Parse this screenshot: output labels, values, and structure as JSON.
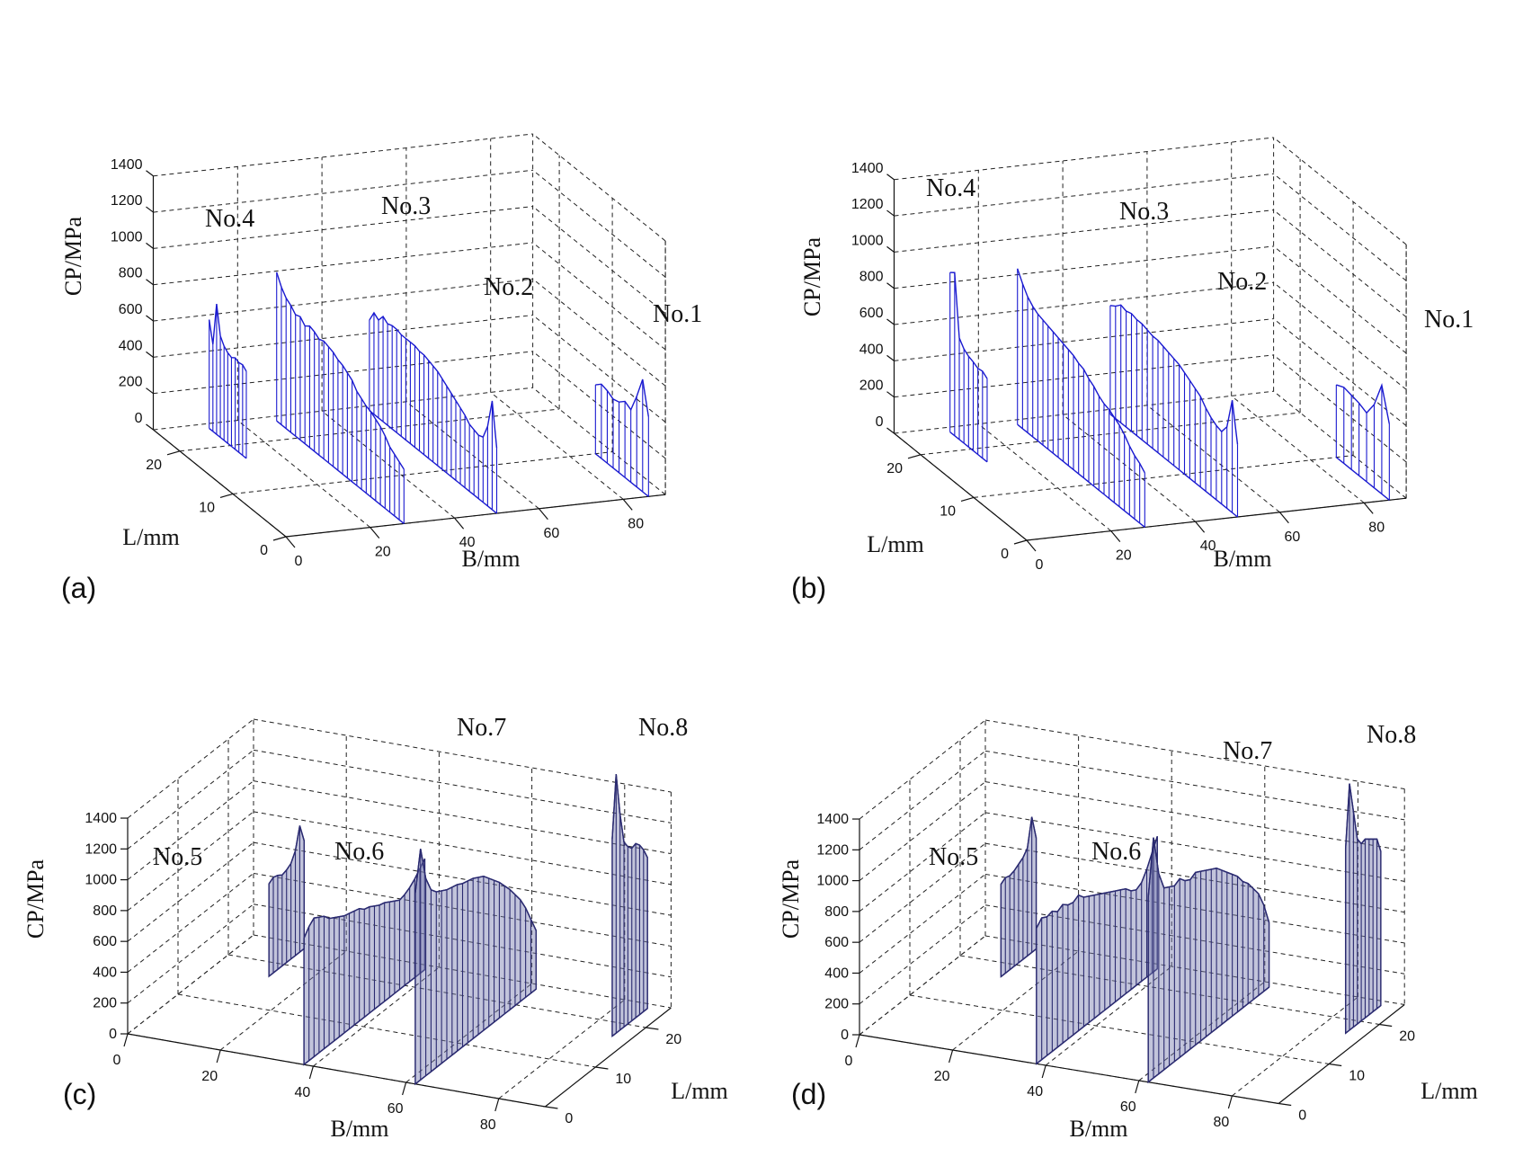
{
  "chart_data": [
    {
      "panel": "(a)",
      "type": "bar3d-stem",
      "xlabel": "B/mm",
      "ylabel": "L/mm",
      "zlabel": "CP/MPa",
      "xlim": [
        0,
        90
      ],
      "ylim": [
        0,
        25
      ],
      "zlim": [
        0,
        1400
      ],
      "xticks": [
        "0",
        "20",
        "40",
        "60",
        "80"
      ],
      "yticks": [
        "0",
        "10",
        "20"
      ],
      "zticks": [
        "0",
        "200",
        "400",
        "600",
        "800",
        "1000",
        "1200",
        "1400"
      ],
      "series": [
        {
          "name": "No.4",
          "B_position": 12,
          "L_range": [
            17,
            24
          ],
          "values": [
            480,
            500,
            495,
            505,
            490,
            500,
            520,
            560,
            720,
            480,
            600
          ]
        },
        {
          "name": "No.3",
          "B_position": 28,
          "L_range": [
            0,
            24
          ],
          "values": [
            300,
            320,
            340,
            360,
            400,
            430,
            450,
            470,
            480,
            500,
            520,
            560,
            580,
            600,
            610,
            630,
            640,
            650,
            640,
            660,
            670,
            650,
            680,
            670,
            700,
            720,
            760,
            820
          ]
        },
        {
          "name": "No.2",
          "B_position": 50,
          "L_range": [
            0,
            24
          ],
          "values": [
            360,
            600,
            440,
            360,
            350,
            360,
            370,
            400,
            420,
            440,
            460,
            480,
            500,
            520,
            530,
            540,
            550,
            550,
            560,
            560,
            560,
            560,
            570,
            570,
            560,
            580,
            540,
            560,
            500
          ]
        },
        {
          "name": "No.1",
          "B_position": 86,
          "L_range": [
            0,
            10
          ],
          "values": [
            440,
            620,
            500,
            400,
            420,
            390,
            380,
            400,
            410,
            380
          ]
        }
      ]
    },
    {
      "panel": "(b)",
      "type": "bar3d-stem",
      "xlabel": "B/mm",
      "ylabel": "L/mm",
      "zlabel": "CP/MPa",
      "xlim": [
        0,
        90
      ],
      "ylim": [
        0,
        25
      ],
      "zlim": [
        0,
        1400
      ],
      "xticks": [
        "0",
        "20",
        "40",
        "60",
        "80"
      ],
      "yticks": [
        "0",
        "10",
        "20"
      ],
      "zticks": [
        "0",
        "200",
        "400",
        "600",
        "800",
        "1000",
        "1200",
        "1400"
      ],
      "series": [
        {
          "name": "No.4",
          "B_position": 12,
          "L_range": [
            17,
            24
          ],
          "values": [
            460,
            480,
            475,
            490,
            500,
            520,
            560,
            900,
            880
          ]
        },
        {
          "name": "No.3",
          "B_position": 28,
          "L_range": [
            0,
            24
          ],
          "values": [
            300,
            330,
            350,
            380,
            420,
            450,
            470,
            490,
            500,
            520,
            550,
            570,
            600,
            610,
            630,
            640,
            650,
            660,
            670,
            680,
            690,
            700,
            720,
            750,
            800,
            860
          ]
        },
        {
          "name": "No.2",
          "B_position": 50,
          "L_range": [
            0,
            24
          ],
          "values": [
            400,
            620,
            450,
            400,
            410,
            430,
            460,
            500,
            520,
            540,
            560,
            580,
            590,
            600,
            610,
            620,
            620,
            630,
            640,
            640,
            650,
            640,
            650,
            620,
            600
          ]
        },
        {
          "name": "No.1",
          "B_position": 86,
          "L_range": [
            0,
            10
          ],
          "values": [
            420,
            600,
            460,
            380,
            400,
            410,
            420,
            400
          ]
        }
      ]
    },
    {
      "panel": "(c)",
      "type": "bar3d-stem",
      "xlabel": "B/mm",
      "ylabel": "L/mm",
      "zlabel": "CP/MPa",
      "xlim": [
        0,
        90
      ],
      "ylim": [
        0,
        25
      ],
      "zlim": [
        0,
        1400
      ],
      "xticks": [
        "0",
        "20",
        "40",
        "60",
        "80"
      ],
      "yticks": [
        "0",
        "10",
        "20"
      ],
      "zticks": [
        "0",
        "200",
        "400",
        "600",
        "800",
        "1000",
        "1200",
        "1400"
      ],
      "series": [
        {
          "name": "No.5",
          "B_position": 12,
          "L_range": [
            17,
            24
          ],
          "values": [
            600,
            620,
            610,
            590,
            600,
            620,
            680,
            820,
            700
          ]
        },
        {
          "name": "No.6",
          "B_position": 38,
          "L_range": [
            0,
            24
          ],
          "values": [
            820,
            870,
            900,
            880,
            860,
            820,
            800,
            780,
            760,
            750,
            740,
            730,
            700,
            690,
            670,
            650,
            640,
            620,
            600,
            580,
            590,
            610,
            640,
            680,
            720
          ]
        },
        {
          "name": "No.7",
          "B_position": 62,
          "L_range": [
            0,
            24
          ],
          "values": [
            1240,
            1500,
            1280,
            1180,
            1140,
            1120,
            1100,
            1090,
            1080,
            1060,
            1050,
            1040,
            1020,
            1000,
            960,
            920,
            880,
            830,
            780,
            720,
            660,
            580,
            480,
            380
          ]
        },
        {
          "name": "No.8",
          "B_position": 86,
          "L_range": [
            17,
            24
          ],
          "values": [
            1280,
            1680,
            1400,
            1200,
            1150,
            1120,
            1130,
            1100,
            1050,
            980
          ]
        }
      ]
    },
    {
      "panel": "(d)",
      "type": "bar3d-stem",
      "xlabel": "B/mm",
      "ylabel": "L/mm",
      "zlabel": "CP/MPa",
      "xlim": [
        0,
        90
      ],
      "ylim": [
        0,
        25
      ],
      "zlim": [
        0,
        1400
      ],
      "xticks": [
        "0",
        "20",
        "40",
        "60",
        "80"
      ],
      "yticks": [
        "0",
        "10",
        "20"
      ],
      "zticks": [
        "0",
        "200",
        "400",
        "600",
        "800",
        "1000",
        "1200",
        "1400"
      ],
      "series": [
        {
          "name": "No.5",
          "B_position": 12,
          "L_range": [
            17,
            24
          ],
          "values": [
            600,
            620,
            610,
            620,
            640,
            660,
            700,
            880,
            720
          ]
        },
        {
          "name": "No.6",
          "B_position": 38,
          "L_range": [
            0,
            24
          ],
          "values": [
            880,
            920,
            900,
            910,
            880,
            900,
            870,
            860,
            880,
            840,
            820,
            800,
            780,
            760,
            740,
            720,
            700,
            680,
            640,
            620,
            640,
            700,
            780,
            860
          ]
        },
        {
          "name": "No.7",
          "B_position": 62,
          "L_range": [
            0,
            24
          ],
          "values": [
            1200,
            1560,
            1300,
            1180,
            1160,
            1140,
            1160,
            1120,
            1100,
            1120,
            1100,
            1080,
            1060,
            1040,
            1000,
            960,
            920,
            880,
            820,
            780,
            720,
            660,
            560,
            420
          ]
        },
        {
          "name": "No.8",
          "B_position": 86,
          "L_range": [
            17,
            24
          ],
          "values": [
            1200,
            1600,
            1400,
            1200,
            1150,
            1160,
            1140,
            1120,
            1100,
            1000
          ]
        }
      ]
    }
  ]
}
